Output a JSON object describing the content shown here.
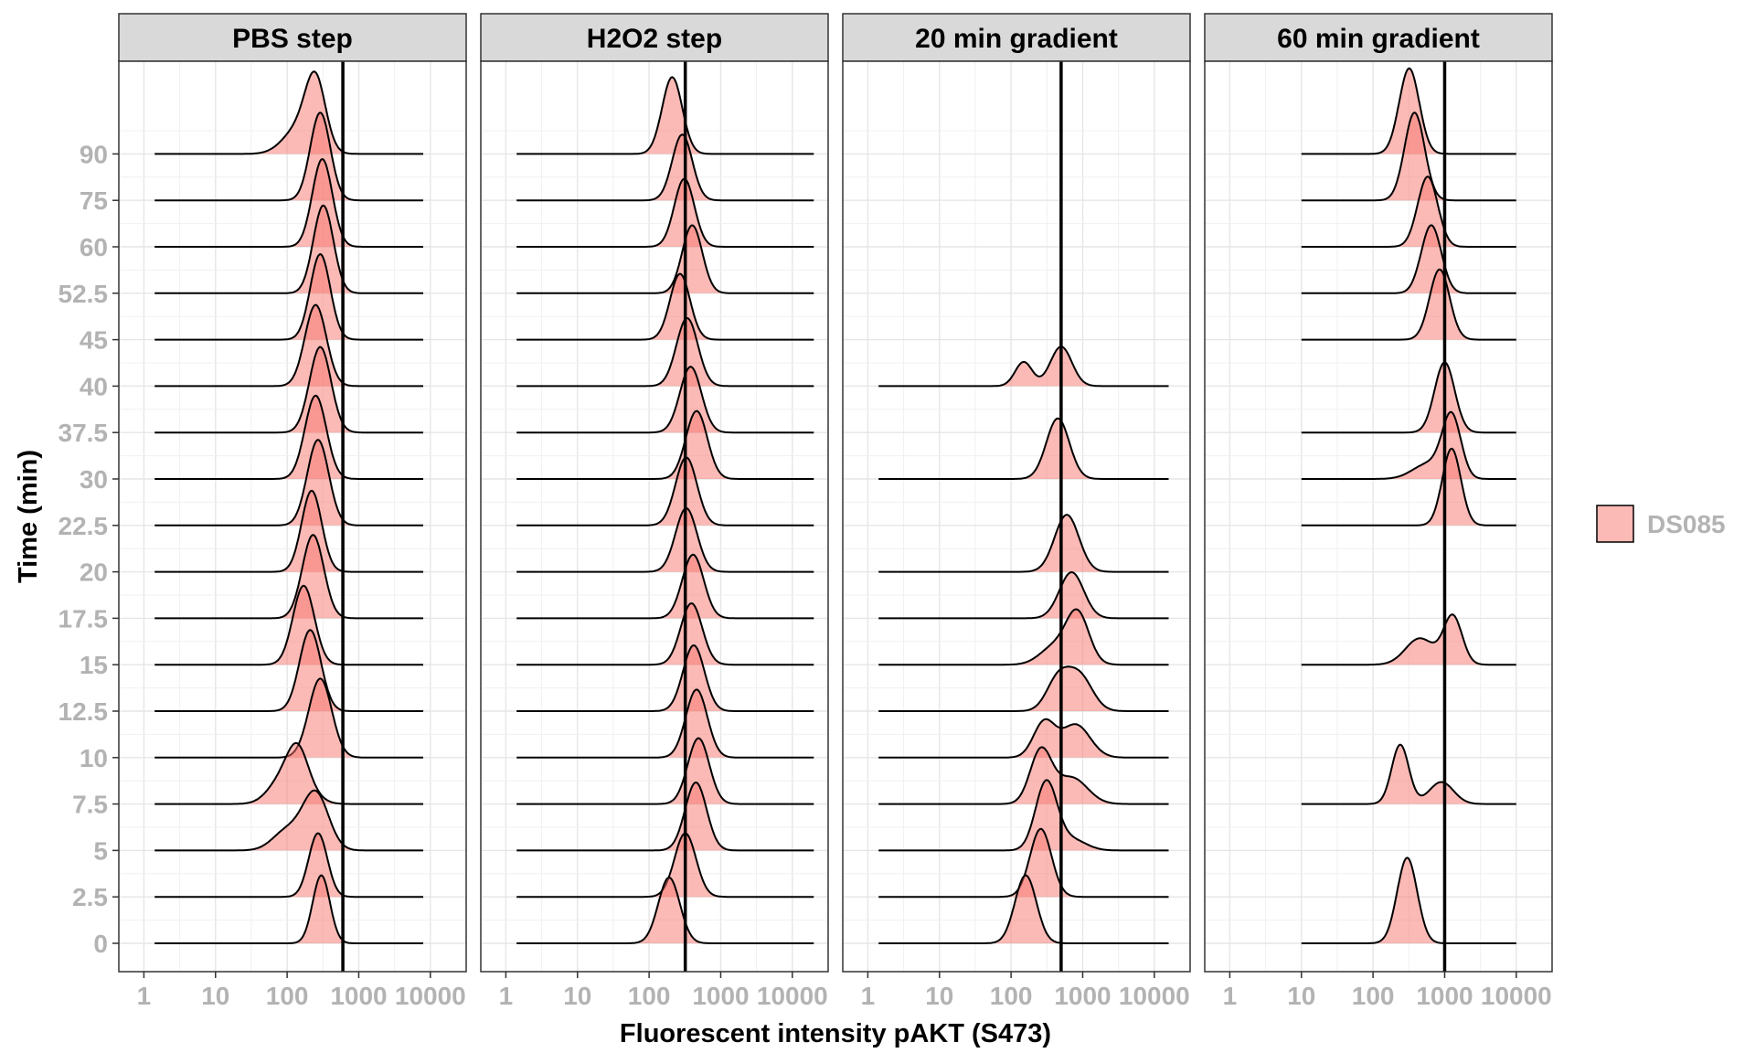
{
  "chart_data": {
    "type": "ridgeline-density",
    "xlabel": "Fluorescent intensity pAKT (S473)",
    "ylabel": "Time (min)",
    "x_scale": "log10",
    "x_ticks": [
      1,
      10,
      100,
      1000,
      10000
    ],
    "x_tick_labels": [
      "1",
      "10",
      "100",
      "1000",
      "10000"
    ],
    "y_levels": [
      "0",
      "2.5",
      "5",
      "7.5",
      "10",
      "12.5",
      "15",
      "17.5",
      "20",
      "22.5",
      "30",
      "37.5",
      "40",
      "45",
      "52.5",
      "60",
      "75",
      "90"
    ],
    "legend": {
      "entries": [
        "DS085"
      ],
      "position": "right",
      "fill": "#F8766D"
    },
    "grid": true,
    "fill_color": "#F8766D",
    "fill_alpha": 0.5,
    "line_color": "#000000",
    "panels": [
      {
        "title": "PBS step",
        "x_range_log10": [
          0.15,
          3.9
        ],
        "vline": 600,
        "ridges": [
          {
            "time": "0",
            "peaks": [
              {
                "center": 300,
                "sd": 0.12,
                "height": 1.55
              }
            ]
          },
          {
            "time": "2.5",
            "peaks": [
              {
                "center": 270,
                "sd": 0.13,
                "height": 1.45
              }
            ]
          },
          {
            "time": "5",
            "peaks": [
              {
                "center": 250,
                "sd": 0.18,
                "height": 1.3
              },
              {
                "center": 100,
                "sd": 0.2,
                "height": 0.45
              }
            ]
          },
          {
            "time": "7.5",
            "peaks": [
              {
                "center": 140,
                "sd": 0.14,
                "height": 0.75
              },
              {
                "center": 90,
                "sd": 0.2,
                "height": 0.6
              },
              {
                "center": 180,
                "sd": 0.18,
                "height": 0.3
              }
            ]
          },
          {
            "time": "10",
            "peaks": [
              {
                "center": 290,
                "sd": 0.16,
                "height": 1.8
              }
            ]
          },
          {
            "time": "12.5",
            "peaks": [
              {
                "center": 210,
                "sd": 0.15,
                "height": 1.85
              }
            ]
          },
          {
            "time": "15",
            "peaks": [
              {
                "center": 170,
                "sd": 0.15,
                "height": 1.8
              }
            ]
          },
          {
            "time": "17.5",
            "peaks": [
              {
                "center": 230,
                "sd": 0.15,
                "height": 1.9
              }
            ]
          },
          {
            "time": "20",
            "peaks": [
              {
                "center": 220,
                "sd": 0.14,
                "height": 1.85
              }
            ]
          },
          {
            "time": "22.5",
            "peaks": [
              {
                "center": 270,
                "sd": 0.15,
                "height": 1.95
              }
            ]
          },
          {
            "time": "30",
            "peaks": [
              {
                "center": 250,
                "sd": 0.15,
                "height": 1.9
              }
            ]
          },
          {
            "time": "37.5",
            "peaks": [
              {
                "center": 290,
                "sd": 0.15,
                "height": 1.95
              }
            ]
          },
          {
            "time": "40",
            "peaks": [
              {
                "center": 250,
                "sd": 0.15,
                "height": 1.85
              }
            ]
          },
          {
            "time": "45",
            "peaks": [
              {
                "center": 290,
                "sd": 0.14,
                "height": 1.95
              }
            ]
          },
          {
            "time": "52.5",
            "peaks": [
              {
                "center": 320,
                "sd": 0.14,
                "height": 2.0
              }
            ]
          },
          {
            "time": "60",
            "peaks": [
              {
                "center": 310,
                "sd": 0.14,
                "height": 2.0
              }
            ]
          },
          {
            "time": "75",
            "peaks": [
              {
                "center": 290,
                "sd": 0.14,
                "height": 2.0
              }
            ]
          },
          {
            "time": "90",
            "peaks": [
              {
                "center": 250,
                "sd": 0.14,
                "height": 1.5
              },
              {
                "center": 150,
                "sd": 0.22,
                "height": 0.6
              }
            ]
          }
        ]
      },
      {
        "title": "H2O2 step",
        "x_range_log10": [
          0.15,
          4.3
        ],
        "vline": 320,
        "ridges": [
          {
            "time": "0",
            "peaks": [
              {
                "center": 190,
                "sd": 0.15,
                "height": 1.5
              }
            ]
          },
          {
            "time": "2.5",
            "peaks": [
              {
                "center": 320,
                "sd": 0.15,
                "height": 1.45
              }
            ]
          },
          {
            "time": "5",
            "peaks": [
              {
                "center": 450,
                "sd": 0.15,
                "height": 1.55
              }
            ]
          },
          {
            "time": "7.5",
            "peaks": [
              {
                "center": 490,
                "sd": 0.15,
                "height": 1.5
              }
            ]
          },
          {
            "time": "10",
            "peaks": [
              {
                "center": 460,
                "sd": 0.15,
                "height": 1.55
              }
            ]
          },
          {
            "time": "12.5",
            "peaks": [
              {
                "center": 420,
                "sd": 0.15,
                "height": 1.5
              }
            ]
          },
          {
            "time": "15",
            "peaks": [
              {
                "center": 390,
                "sd": 0.15,
                "height": 1.4
              }
            ]
          },
          {
            "time": "17.5",
            "peaks": [
              {
                "center": 410,
                "sd": 0.15,
                "height": 1.45
              }
            ]
          },
          {
            "time": "20",
            "peaks": [
              {
                "center": 330,
                "sd": 0.15,
                "height": 1.45
              }
            ]
          },
          {
            "time": "22.5",
            "peaks": [
              {
                "center": 330,
                "sd": 0.15,
                "height": 1.55
              }
            ]
          },
          {
            "time": "30",
            "peaks": [
              {
                "center": 460,
                "sd": 0.15,
                "height": 1.55
              }
            ]
          },
          {
            "time": "37.5",
            "peaks": [
              {
                "center": 380,
                "sd": 0.15,
                "height": 1.5
              }
            ]
          },
          {
            "time": "40",
            "peaks": [
              {
                "center": 340,
                "sd": 0.15,
                "height": 1.55
              }
            ]
          },
          {
            "time": "45",
            "peaks": [
              {
                "center": 270,
                "sd": 0.14,
                "height": 1.5
              }
            ]
          },
          {
            "time": "52.5",
            "peaks": [
              {
                "center": 400,
                "sd": 0.14,
                "height": 1.55
              }
            ]
          },
          {
            "time": "60",
            "peaks": [
              {
                "center": 310,
                "sd": 0.14,
                "height": 1.55
              }
            ]
          },
          {
            "time": "75",
            "peaks": [
              {
                "center": 290,
                "sd": 0.14,
                "height": 1.5
              }
            ]
          },
          {
            "time": "90",
            "peaks": [
              {
                "center": 210,
                "sd": 0.14,
                "height": 1.75
              }
            ]
          }
        ]
      },
      {
        "title": "20 min gradient",
        "x_range_log10": [
          0.15,
          4.2
        ],
        "vline": 500,
        "ridges": [
          {
            "time": "0",
            "peaks": [
              {
                "center": 160,
                "sd": 0.15,
                "height": 1.55
              }
            ]
          },
          {
            "time": "2.5",
            "peaks": [
              {
                "center": 260,
                "sd": 0.15,
                "height": 1.55
              }
            ]
          },
          {
            "time": "5",
            "peaks": [
              {
                "center": 310,
                "sd": 0.15,
                "height": 1.55
              },
              {
                "center": 700,
                "sd": 0.2,
                "height": 0.25
              }
            ]
          },
          {
            "time": "7.5",
            "peaks": [
              {
                "center": 260,
                "sd": 0.15,
                "height": 1.2
              },
              {
                "center": 700,
                "sd": 0.22,
                "height": 0.6
              }
            ]
          },
          {
            "time": "10",
            "peaks": [
              {
                "center": 290,
                "sd": 0.15,
                "height": 0.8
              },
              {
                "center": 800,
                "sd": 0.2,
                "height": 0.75
              }
            ]
          },
          {
            "time": "12.5",
            "peaks": [
              {
                "center": 450,
                "sd": 0.16,
                "height": 0.7
              },
              {
                "center": 900,
                "sd": 0.18,
                "height": 0.8
              }
            ]
          },
          {
            "time": "15",
            "peaks": [
              {
                "center": 850,
                "sd": 0.16,
                "height": 1.15
              },
              {
                "center": 400,
                "sd": 0.2,
                "height": 0.4
              }
            ]
          },
          {
            "time": "17.5",
            "peaks": [
              {
                "center": 700,
                "sd": 0.17,
                "height": 1.05
              }
            ]
          },
          {
            "time": "20",
            "peaks": [
              {
                "center": 600,
                "sd": 0.17,
                "height": 1.3
              }
            ]
          },
          {
            "time": "30",
            "peaks": [
              {
                "center": 450,
                "sd": 0.16,
                "height": 1.38
              }
            ]
          },
          {
            "time": "40",
            "peaks": [
              {
                "center": 500,
                "sd": 0.15,
                "height": 0.9
              },
              {
                "center": 150,
                "sd": 0.12,
                "height": 0.55
              }
            ]
          }
        ]
      },
      {
        "title": "60 min gradient",
        "x_range_log10": [
          1.0,
          4.0
        ],
        "vline": 1000,
        "ridges": [
          {
            "time": "0",
            "peaks": [
              {
                "center": 300,
                "sd": 0.14,
                "height": 1.95
              }
            ]
          },
          {
            "time": "7.5",
            "peaks": [
              {
                "center": 240,
                "sd": 0.12,
                "height": 1.35
              },
              {
                "center": 900,
                "sd": 0.17,
                "height": 0.5
              }
            ]
          },
          {
            "time": "15",
            "peaks": [
              {
                "center": 1300,
                "sd": 0.13,
                "height": 1.1
              },
              {
                "center": 450,
                "sd": 0.2,
                "height": 0.6
              }
            ]
          },
          {
            "time": "22.5",
            "peaks": [
              {
                "center": 1250,
                "sd": 0.13,
                "height": 1.75
              }
            ]
          },
          {
            "time": "30",
            "peaks": [
              {
                "center": 1250,
                "sd": 0.13,
                "height": 1.4
              },
              {
                "center": 600,
                "sd": 0.22,
                "height": 0.35
              }
            ]
          },
          {
            "time": "37.5",
            "peaks": [
              {
                "center": 1000,
                "sd": 0.14,
                "height": 1.6
              }
            ]
          },
          {
            "time": "45",
            "peaks": [
              {
                "center": 850,
                "sd": 0.14,
                "height": 1.6
              }
            ]
          },
          {
            "time": "52.5",
            "peaks": [
              {
                "center": 650,
                "sd": 0.14,
                "height": 1.55
              }
            ]
          },
          {
            "time": "60",
            "peaks": [
              {
                "center": 580,
                "sd": 0.14,
                "height": 1.6
              }
            ]
          },
          {
            "time": "75",
            "peaks": [
              {
                "center": 380,
                "sd": 0.14,
                "height": 2.0
              }
            ]
          },
          {
            "time": "90",
            "peaks": [
              {
                "center": 320,
                "sd": 0.14,
                "height": 1.95
              }
            ]
          }
        ]
      }
    ]
  }
}
